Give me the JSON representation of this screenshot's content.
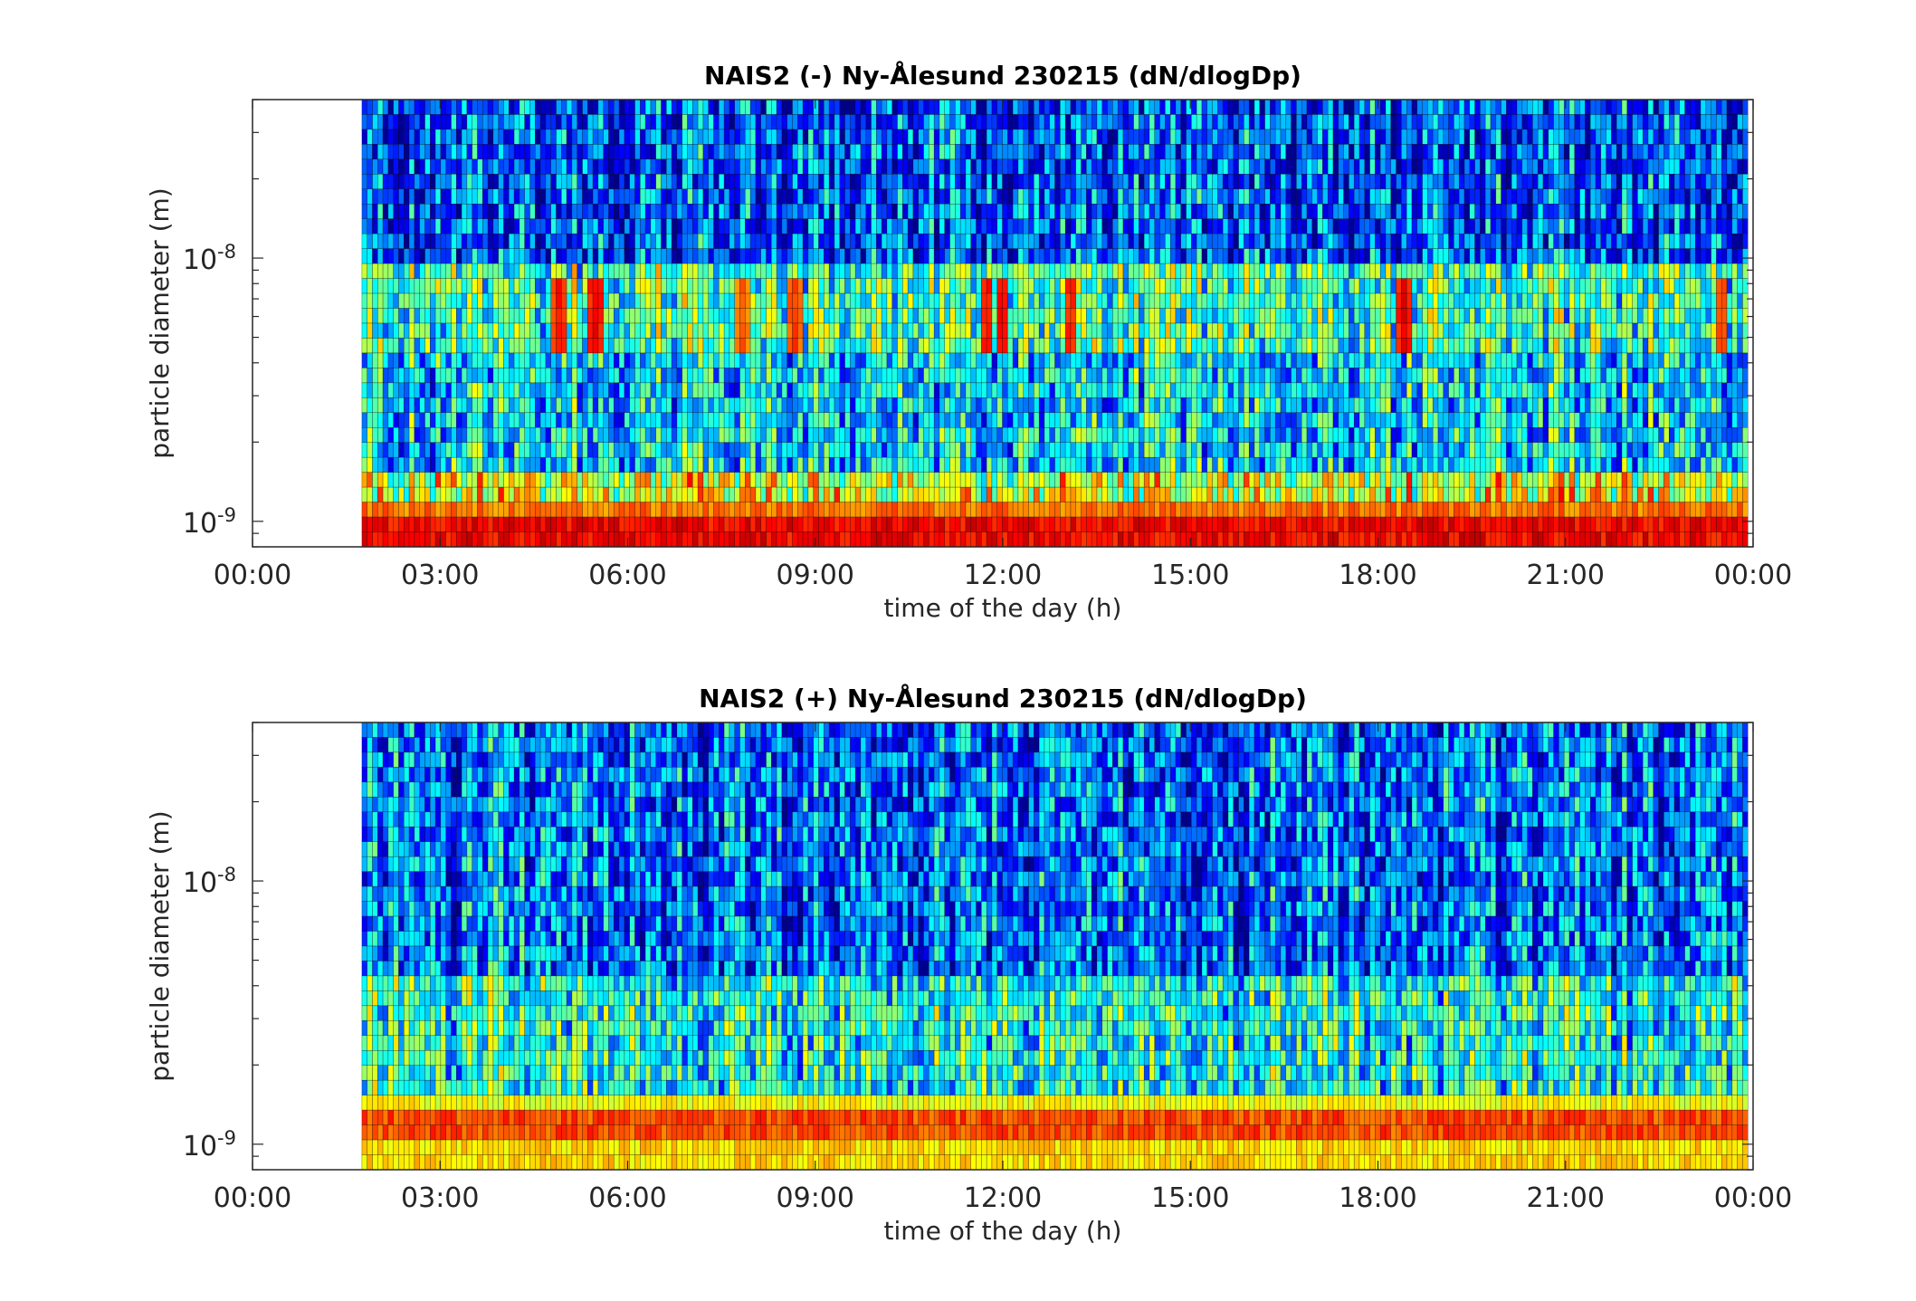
{
  "chart_data": [
    {
      "type": "heatmap",
      "title": "NAIS2 (-) Ny-Ålesund 230215 (dN/dlogDp)",
      "xlabel": "time of the day (h)",
      "ylabel": "particle diameter (m)",
      "xlim": [
        "00:00",
        "00:00"
      ],
      "xticks": [
        "00:00",
        "03:00",
        "06:00",
        "09:00",
        "12:00",
        "15:00",
        "18:00",
        "21:00",
        "00:00"
      ],
      "yscale": "log",
      "ylim": [
        8e-10,
        4e-08
      ],
      "yticks": [
        {
          "base": "10",
          "exp": "-9"
        },
        {
          "base": "10",
          "exp": "-8"
        }
      ],
      "data_start": "01:45",
      "data_end": "23:55",
      "colormap": "jet",
      "colormap_stops": [
        "#00008f",
        "#0000ff",
        "#0080ff",
        "#00ffff",
        "#80ff80",
        "#ffff00",
        "#ff8000",
        "#ff0000",
        "#800000"
      ],
      "value_scale": "relative 0-1 (no colorbar shown)",
      "bands": [
        {
          "diameter_range": [
            8e-10,
            1e-09
          ],
          "level": 0.88,
          "description": "bright red"
        },
        {
          "diameter_range": [
            1e-09,
            1.2e-09
          ],
          "level": 0.76,
          "description": "orange"
        },
        {
          "diameter_range": [
            1.2e-09,
            1.5e-09
          ],
          "level": 0.6,
          "description": "yellow-green"
        },
        {
          "diameter_range": [
            1.5e-09,
            4.5e-09
          ],
          "level": 0.35,
          "description": "blue/cyan mix"
        },
        {
          "diameter_range": [
            4.5e-09,
            9e-09
          ],
          "level": 0.45,
          "description": "cyan-yellow with red bursts"
        },
        {
          "diameter_range": [
            9e-09,
            4e-08
          ],
          "level": 0.22,
          "description": "dark blue/cyan"
        }
      ],
      "events": [
        {
          "time": "04:55",
          "diameter": 6e-09,
          "level": 0.9
        },
        {
          "time": "05:30",
          "diameter": 6e-09,
          "level": 0.92
        },
        {
          "time": "07:50",
          "diameter": 6e-09,
          "level": 0.82
        },
        {
          "time": "08:40",
          "diameter": 6e-09,
          "level": 0.85
        },
        {
          "time": "11:45",
          "diameter": 6e-09,
          "level": 0.9
        },
        {
          "time": "12:00",
          "diameter": 6e-09,
          "level": 0.92
        },
        {
          "time": "13:05",
          "diameter": 6e-09,
          "level": 0.88
        },
        {
          "time": "18:25",
          "diameter": 6e-09,
          "level": 0.92
        },
        {
          "time": "23:30",
          "diameter": 6e-09,
          "level": 0.85
        }
      ]
    },
    {
      "type": "heatmap",
      "title": "NAIS2 (+) Ny-Ålesund 230215 (dN/dlogDp)",
      "xlabel": "time of the day (h)",
      "ylabel": "particle diameter (m)",
      "xlim": [
        "00:00",
        "00:00"
      ],
      "xticks": [
        "00:00",
        "03:00",
        "06:00",
        "09:00",
        "12:00",
        "15:00",
        "18:00",
        "21:00",
        "00:00"
      ],
      "yscale": "log",
      "ylim": [
        8e-10,
        4e-08
      ],
      "yticks": [
        {
          "base": "10",
          "exp": "-9"
        },
        {
          "base": "10",
          "exp": "-8"
        }
      ],
      "data_start": "01:45",
      "data_end": "23:55",
      "colormap": "jet",
      "colormap_stops": [
        "#00008f",
        "#0000ff",
        "#0080ff",
        "#00ffff",
        "#80ff80",
        "#ffff00",
        "#ff8000",
        "#ff0000",
        "#800000"
      ],
      "value_scale": "relative 0-1 (no colorbar shown)",
      "bands": [
        {
          "diameter_range": [
            8e-10,
            1e-09
          ],
          "level": 0.66,
          "description": "yellow-orange"
        },
        {
          "diameter_range": [
            1e-09,
            1.4e-09
          ],
          "level": 0.8,
          "description": "orange-red"
        },
        {
          "diameter_range": [
            1.4e-09,
            1.6e-09
          ],
          "level": 0.62,
          "description": "yellow"
        },
        {
          "diameter_range": [
            1.6e-09,
            4.5e-09
          ],
          "level": 0.4,
          "description": "cyan with blue"
        },
        {
          "diameter_range": [
            4.5e-09,
            4e-08
          ],
          "level": 0.24,
          "description": "dark blue/cyan"
        }
      ],
      "events": []
    }
  ]
}
